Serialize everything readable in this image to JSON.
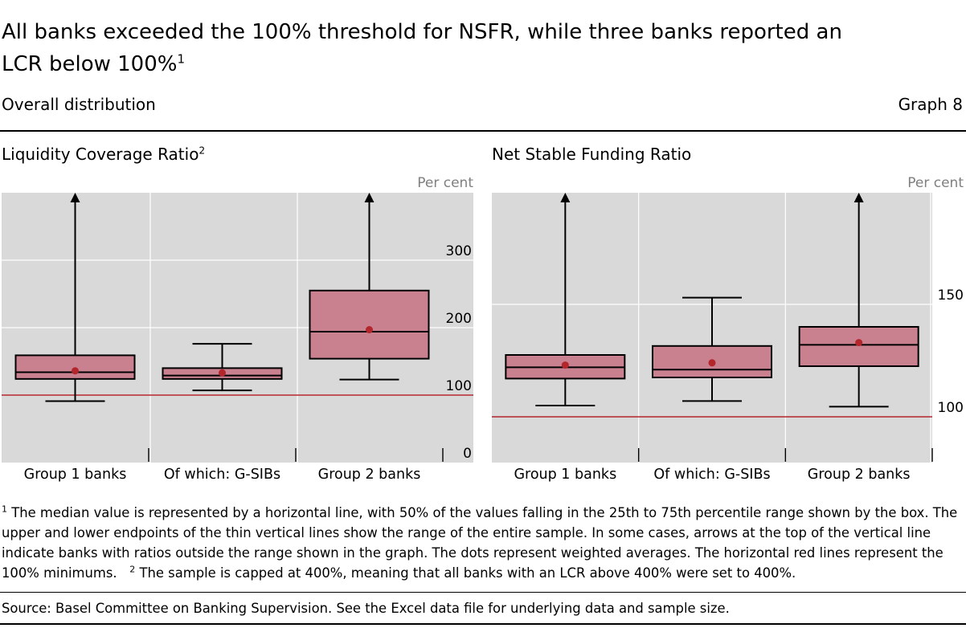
{
  "header": {
    "title": "All banks exceeded the 100% threshold for NSFR, while three banks reported an LCR below 100%",
    "title_footnote": "1",
    "subtitle": "Overall distribution",
    "graph_label": "Graph 8"
  },
  "colors": {
    "box_fill": "#c98190",
    "dot": "#b3262c",
    "threshold": "#b3262c",
    "plot_bg": "#d9d9d9",
    "gridline": "#ffffff"
  },
  "chart_data": [
    {
      "type": "boxplot",
      "title": "Liquidity Coverage Ratio",
      "title_footnote": "2",
      "unit_label": "Per cent",
      "ylim": [
        0,
        400
      ],
      "yticks": [
        0,
        100,
        200,
        300
      ],
      "categories": [
        "Group 1 banks",
        "Of which: G-SIBs",
        "Group 2 banks"
      ],
      "boxes": [
        {
          "min": 91,
          "q1": 124,
          "median": 134,
          "q3": 159,
          "max": 400,
          "weighted_avg": 136,
          "arrow": true
        },
        {
          "min": 107,
          "q1": 124,
          "median": 129,
          "q3": 140,
          "max": 176,
          "weighted_avg": 133,
          "arrow": false
        },
        {
          "min": 123,
          "q1": 154,
          "median": 194,
          "q3": 255,
          "max": 400,
          "weighted_avg": 197,
          "arrow": true
        }
      ],
      "threshold": 100
    },
    {
      "type": "boxplot",
      "title": "Net Stable Funding Ratio",
      "unit_label": "Per cent",
      "ylim": [
        90,
        185
      ],
      "yticks": [
        100,
        150
      ],
      "categories": [
        "Group 1 banks",
        "Of which: G-SIBs",
        "Group 2 banks"
      ],
      "boxes": [
        {
          "min": 105,
          "q1": 117,
          "median": 122,
          "q3": 127.5,
          "max": 185,
          "weighted_avg": 123,
          "arrow": true
        },
        {
          "min": 107,
          "q1": 117.5,
          "median": 121,
          "q3": 131.5,
          "max": 153,
          "weighted_avg": 124,
          "arrow": false
        },
        {
          "min": 104.5,
          "q1": 122.5,
          "median": 132,
          "q3": 140,
          "max": 185,
          "weighted_avg": 133,
          "arrow": true
        }
      ],
      "threshold": 100
    }
  ],
  "footnotes": {
    "n1": "1",
    "text1": "The median value is represented by a horizontal line, with 50% of the values falling in the 25th to 75th percentile range shown by the box. The upper and lower endpoints of the thin vertical lines show the range of the entire sample. In some cases, arrows at the top of the vertical line indicate banks with ratios outside the range shown in the graph. The dots represent weighted averages. The horizontal red lines represent the 100% minimums.",
    "n2": "2",
    "text2": "The sample is capped at 400%, meaning that all banks with an LCR above 400% were set to 400%."
  },
  "source": "Source: Basel Committee on Banking Supervision. See the Excel data file for underlying data and sample size."
}
